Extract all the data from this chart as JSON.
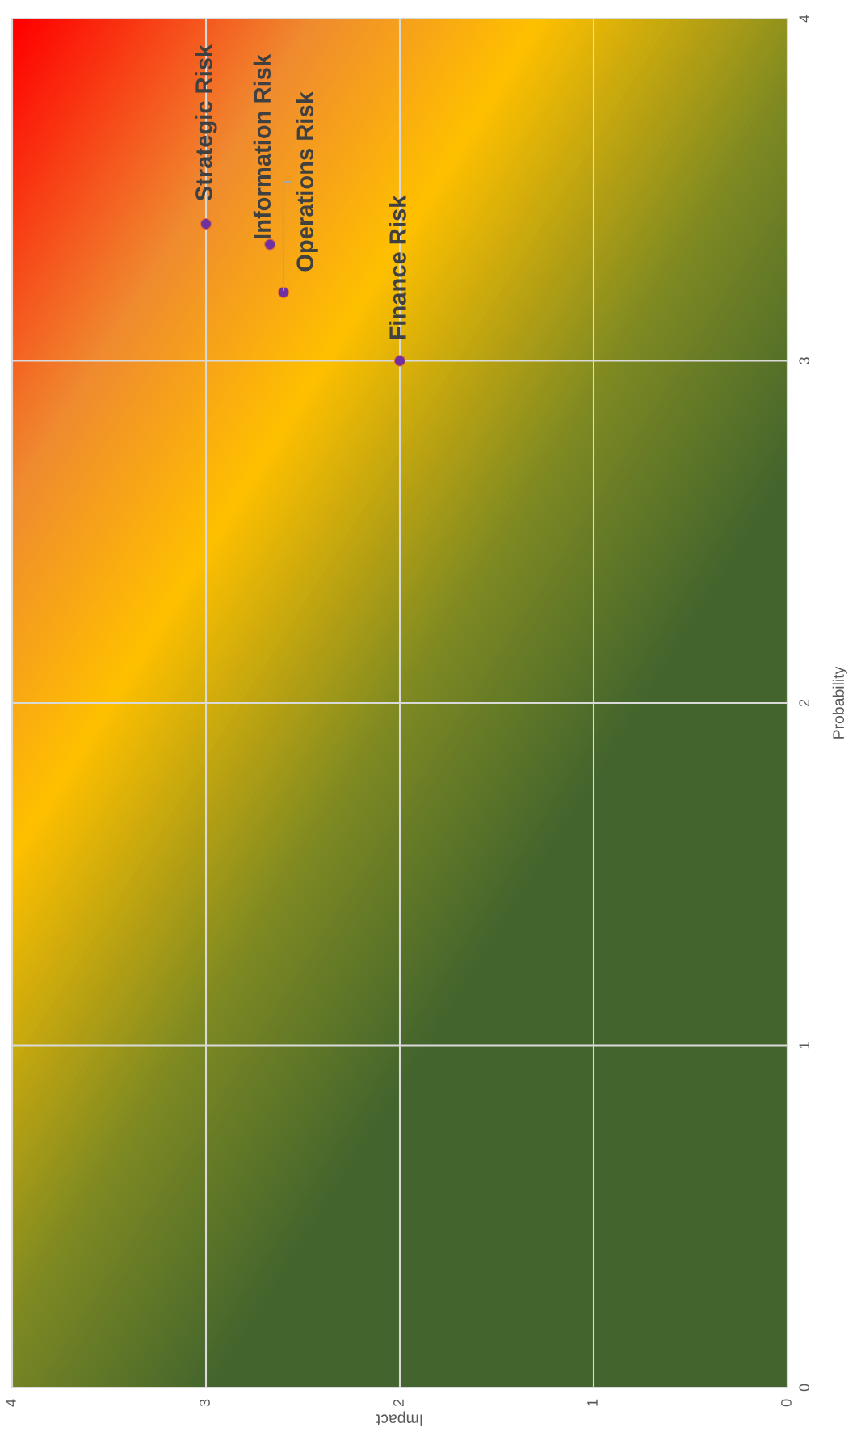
{
  "chart_data": {
    "type": "scatter",
    "xlabel": "Impact",
    "ylabel": "Probability",
    "x": [
      3,
      2.67,
      2.6,
      2
    ],
    "series": [
      {
        "color": "#7030a0",
        "values": [
          3.4,
          3.34,
          3.2,
          3.0
        ],
        "value_labels": [
          "Strategic Risk",
          "Information Risk",
          "Operations Risk",
          "Finance Risk"
        ]
      }
    ],
    "xlim": [
      4,
      0
    ],
    "xticks": [
      0,
      1,
      2,
      3,
      4
    ],
    "ylim": [
      0,
      4
    ],
    "yticks": [
      0,
      1,
      2,
      3,
      4
    ],
    "grid": true,
    "marker": "circle"
  }
}
